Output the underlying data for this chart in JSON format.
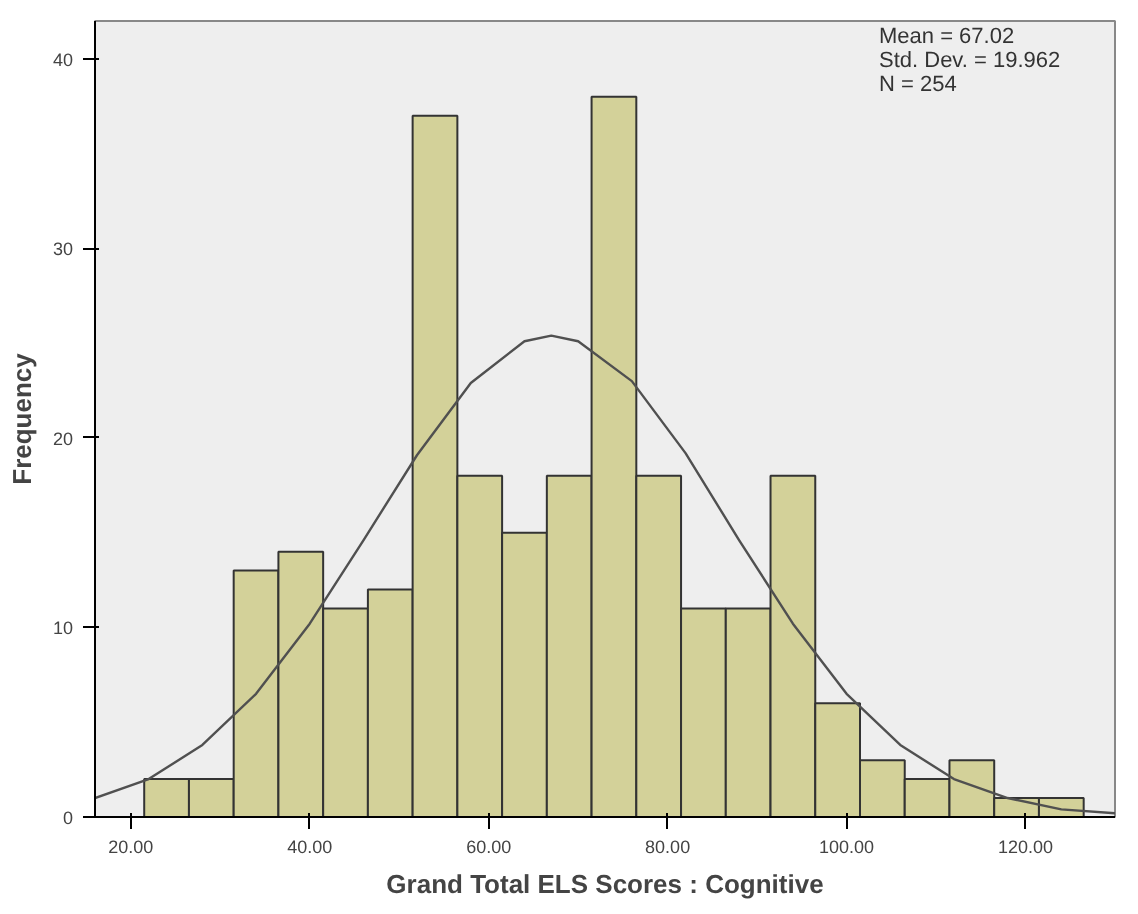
{
  "chart_data": {
    "type": "histogram",
    "xlabel": "Grand Total ELS Scores : Cognitive",
    "ylabel": "Frequency",
    "bins": [
      21.5,
      26.5,
      31.5,
      36.5,
      41.5,
      46.5,
      51.5,
      56.5,
      61.5,
      66.5,
      71.5,
      76.5,
      81.5,
      86.5,
      91.5,
      96.5,
      101.5,
      106.5,
      111.5,
      116.5,
      121.5,
      126.5
    ],
    "values": [
      2,
      2,
      13,
      14,
      11,
      12,
      37,
      18,
      15,
      18,
      38,
      18,
      11,
      11,
      18,
      6,
      3,
      2,
      3,
      1,
      1
    ],
    "color": "#d3d199",
    "series": [
      {
        "type": "line",
        "color": "#505050",
        "x": [
          16,
          22,
          28,
          34,
          40,
          46,
          52,
          58,
          64,
          67,
          70,
          76,
          82,
          88,
          94,
          100,
          106,
          112,
          118,
          124,
          130
        ],
        "values": [
          1.0,
          2.0,
          3.8,
          6.5,
          10.2,
          14.6,
          19.1,
          22.9,
          25.1,
          25.4,
          25.1,
          23.0,
          19.2,
          14.6,
          10.2,
          6.5,
          3.8,
          2.0,
          1.0,
          0.4,
          0.2
        ]
      }
    ],
    "annotations": [
      "Mean = 67.02",
      "Std. Dev. = 19.962",
      "N = 254"
    ],
    "xlim": [
      16,
      130
    ],
    "ylim": [
      0,
      42
    ],
    "xticks": [
      {
        "value": 20,
        "label": "20.00"
      },
      {
        "value": 40,
        "label": "40.00"
      },
      {
        "value": 60,
        "label": "60.00"
      },
      {
        "value": 80,
        "label": "80.00"
      },
      {
        "value": 100,
        "label": "100.00"
      },
      {
        "value": 120,
        "label": "120.00"
      }
    ],
    "yticks": [
      0,
      10,
      20,
      30,
      40
    ],
    "grid": false
  }
}
